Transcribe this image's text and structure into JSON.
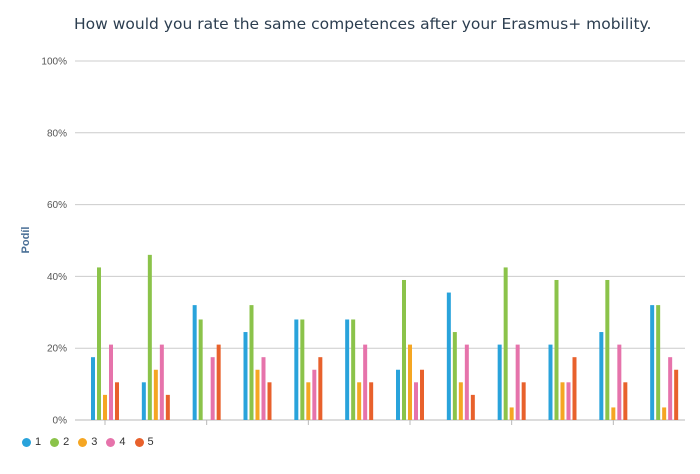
{
  "chart_data": {
    "type": "bar",
    "title": "How would you rate the same competences after your Erasmus+ mobility.",
    "ylabel": "Podíl",
    "ylim": [
      0,
      100
    ],
    "yticks": [
      "0%",
      "20%",
      "40%",
      "60%",
      "80%",
      "100%"
    ],
    "grid": true,
    "legend_position": "bottom-left",
    "categories": [
      "",
      "",
      "",
      "",
      "",
      "",
      "",
      "",
      "",
      "",
      "",
      ""
    ],
    "series": [
      {
        "name": "1",
        "color": "#29a3db",
        "values": [
          17.5,
          10.5,
          32,
          24.5,
          28,
          28,
          14,
          35.5,
          21,
          21,
          24.5,
          32
        ]
      },
      {
        "name": "2",
        "color": "#8bc34a",
        "values": [
          42.5,
          46,
          28,
          32,
          28,
          28,
          39,
          24.5,
          42.5,
          39,
          39,
          32
        ]
      },
      {
        "name": "3",
        "color": "#f5a623",
        "values": [
          7,
          14,
          0,
          14,
          10.5,
          10.5,
          21,
          10.5,
          3.5,
          10.5,
          3.5,
          3.5
        ]
      },
      {
        "name": "4",
        "color": "#e673ab",
        "values": [
          21,
          21,
          17.5,
          17.5,
          14,
          21,
          10.5,
          21,
          21,
          10.5,
          21,
          17.5
        ]
      },
      {
        "name": "5",
        "color": "#e8612c",
        "values": [
          10.5,
          7,
          21,
          10.5,
          17.5,
          10.5,
          14,
          7,
          10.5,
          17.5,
          10.5,
          14
        ]
      }
    ]
  }
}
